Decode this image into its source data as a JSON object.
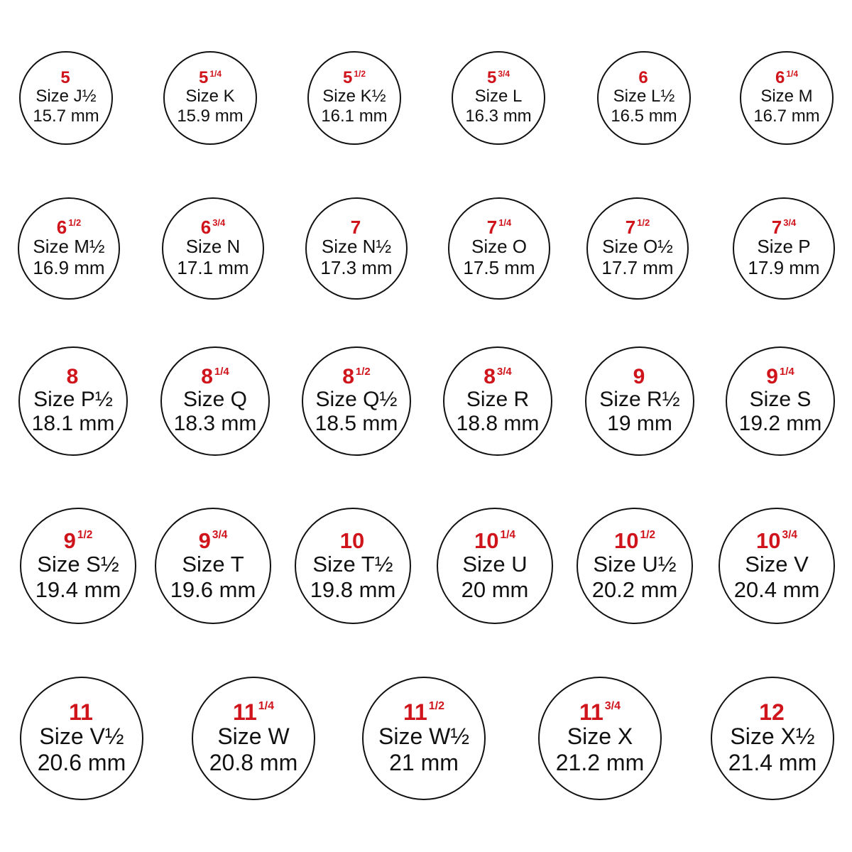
{
  "colors": {
    "us_size": "#d0141b",
    "text": "#111111",
    "ring_outline": "#111111"
  },
  "rings": [
    {
      "us": "5",
      "frac": "",
      "uk": "Size J½",
      "mm": "15.7 mm"
    },
    {
      "us": "5",
      "frac": "1/4",
      "uk": "Size K",
      "mm": "15.9 mm"
    },
    {
      "us": "5",
      "frac": "1/2",
      "uk": "Size K½",
      "mm": "16.1 mm"
    },
    {
      "us": "5",
      "frac": "3/4",
      "uk": "Size L",
      "mm": "16.3 mm"
    },
    {
      "us": "6",
      "frac": "",
      "uk": "Size L½",
      "mm": "16.5 mm"
    },
    {
      "us": "6",
      "frac": "1/4",
      "uk": "Size M",
      "mm": "16.7 mm"
    },
    {
      "us": "6",
      "frac": "1/2",
      "uk": "Size M½",
      "mm": "16.9 mm"
    },
    {
      "us": "6",
      "frac": "3/4",
      "uk": "Size N",
      "mm": "17.1 mm"
    },
    {
      "us": "7",
      "frac": "",
      "uk": "Size N½",
      "mm": "17.3 mm"
    },
    {
      "us": "7",
      "frac": "1/4",
      "uk": "Size O",
      "mm": "17.5 mm"
    },
    {
      "us": "7",
      "frac": "1/2",
      "uk": "Size O½",
      "mm": "17.7 mm"
    },
    {
      "us": "7",
      "frac": "3/4",
      "uk": "Size P",
      "mm": "17.9 mm"
    },
    {
      "us": "8",
      "frac": "",
      "uk": "Size P½",
      "mm": "18.1 mm"
    },
    {
      "us": "8",
      "frac": "1/4",
      "uk": "Size Q",
      "mm": "18.3 mm"
    },
    {
      "us": "8",
      "frac": "1/2",
      "uk": "Size Q½",
      "mm": "18.5 mm"
    },
    {
      "us": "8",
      "frac": "3/4",
      "uk": "Size R",
      "mm": "18.8 mm"
    },
    {
      "us": "9",
      "frac": "",
      "uk": "Size R½",
      "mm": "19 mm"
    },
    {
      "us": "9",
      "frac": "1/4",
      "uk": "Size S",
      "mm": "19.2 mm"
    },
    {
      "us": "9",
      "frac": "1/2",
      "uk": "Size S½",
      "mm": "19.4 mm"
    },
    {
      "us": "9",
      "frac": "3/4",
      "uk": "Size T",
      "mm": "19.6 mm"
    },
    {
      "us": "10",
      "frac": "",
      "uk": "Size T½",
      "mm": "19.8 mm"
    },
    {
      "us": "10",
      "frac": "1/4",
      "uk": "Size U",
      "mm": "20 mm"
    },
    {
      "us": "10",
      "frac": "1/2",
      "uk": "Size U½",
      "mm": "20.2 mm"
    },
    {
      "us": "10",
      "frac": "3/4",
      "uk": "Size V",
      "mm": "20.4 mm"
    },
    {
      "us": "11",
      "frac": "",
      "uk": "Size V½",
      "mm": "20.6 mm"
    },
    {
      "us": "11",
      "frac": "1/4",
      "uk": "Size W",
      "mm": "20.8 mm"
    },
    {
      "us": "11",
      "frac": "1/2",
      "uk": "Size W½",
      "mm": "21 mm"
    },
    {
      "us": "11",
      "frac": "3/4",
      "uk": "Size X",
      "mm": "21.2 mm"
    },
    {
      "us": "12",
      "frac": "",
      "uk": "Size X½",
      "mm": "21.4 mm"
    }
  ]
}
